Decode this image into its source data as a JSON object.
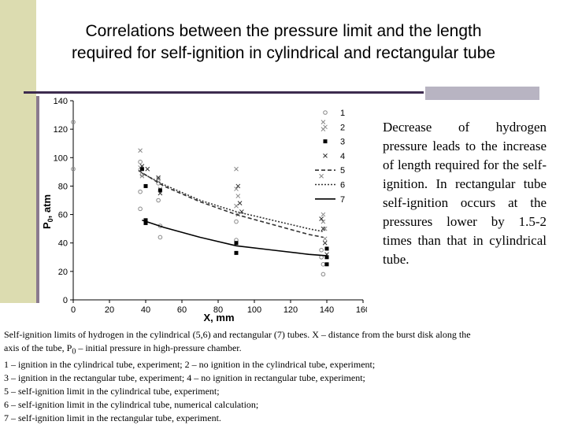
{
  "slide": {
    "title_line1": "Correlations between the pressure limit and the length",
    "title_line2": "required for self-ignition in cylindrical and rectangular tube",
    "side_text": "Decrease of hydrogen pressure leads to the increase of length required for the self-ignition. In rectangular tube self-ignition occurs at the pressures lower by 1.5-2 times than that in cylindrical tube.",
    "caption": {
      "line1_a": "Self-ignition limits of hydrogen in the cylindrical (5,6) and rectangular (7) tubes. X – distance from the burst disk along the",
      "line1_b_pre": "axis of the tube, P",
      "line1_b_sub": "0",
      "line1_b_post": " – initial pressure in high-pressure chamber.",
      "line2": "1 – ignition in the cylindrical tube, experiment; 2 – no ignition in the cylindrical tube, experiment;",
      "line3": "3 – ignition in the rectangular tube, experiment; 4 – no ignition in rectangular tube, experiment;",
      "line4": "5 – self-ignition limit in the cylindrical tube, experiment;",
      "line5": "6 – self-ignition limit in the cylindrical tube, numerical calculation;",
      "line6": "7 – self-ignition limit in the rectangular tube, experiment."
    }
  },
  "chart_data": {
    "type": "scatter",
    "xlabel": "X, mm",
    "ylabel_main": "P",
    "ylabel_sub": "0",
    "ylabel_tail": ", atm",
    "xlim": [
      0,
      160
    ],
    "ylim": [
      0,
      140
    ],
    "x_ticks": [
      "0",
      "20",
      "40",
      "60",
      "80",
      "100",
      "120",
      "140",
      "160"
    ],
    "y_ticks": [
      "0",
      "20",
      "40",
      "60",
      "80",
      "100",
      "120",
      "140"
    ],
    "grid": false,
    "legend_position": "right",
    "series": [
      {
        "name": "1",
        "marker": "circle",
        "color": "#888888",
        "points": [
          [
            0,
            125
          ],
          [
            0,
            92
          ],
          [
            37,
            97
          ],
          [
            37,
            76
          ],
          [
            37,
            64
          ],
          [
            38,
            88
          ],
          [
            47,
            82
          ],
          [
            47,
            70
          ],
          [
            48,
            52
          ],
          [
            48,
            44
          ],
          [
            90,
            55
          ],
          [
            90,
            42
          ],
          [
            137,
            35
          ],
          [
            137,
            30
          ],
          [
            138,
            25
          ],
          [
            138,
            18
          ]
        ]
      },
      {
        "name": "2",
        "marker": "x",
        "color": "#888888",
        "points": [
          [
            37,
            105
          ],
          [
            37,
            93
          ],
          [
            38,
            87
          ],
          [
            47,
            85
          ],
          [
            48,
            78
          ],
          [
            90,
            92
          ],
          [
            90,
            78
          ],
          [
            91,
            73
          ],
          [
            90,
            66
          ],
          [
            91,
            60
          ],
          [
            138,
            125
          ],
          [
            138,
            120
          ],
          [
            137,
            87
          ],
          [
            138,
            60
          ],
          [
            138,
            55
          ],
          [
            139,
            50
          ],
          [
            139,
            43
          ]
        ]
      },
      {
        "name": "3",
        "marker": "square",
        "color": "#000000",
        "points": [
          [
            38,
            92
          ],
          [
            40,
            80
          ],
          [
            48,
            77
          ],
          [
            40,
            56
          ],
          [
            40,
            54
          ],
          [
            90,
            40
          ],
          [
            90,
            33
          ],
          [
            140,
            36
          ],
          [
            140,
            30
          ],
          [
            140,
            25
          ]
        ]
      },
      {
        "name": "4",
        "marker": "x",
        "color": "#333333",
        "points": [
          [
            38,
            94
          ],
          [
            41,
            92
          ],
          [
            47,
            86
          ],
          [
            48,
            75
          ],
          [
            91,
            80
          ],
          [
            92,
            68
          ],
          [
            93,
            62
          ],
          [
            137,
            57
          ],
          [
            138,
            50
          ],
          [
            139,
            40
          ],
          [
            140,
            32
          ]
        ]
      },
      {
        "name": "5",
        "type": "line",
        "dash": "5,3",
        "color": "#333333",
        "x": [
          36,
          50,
          70,
          90,
          110,
          130,
          138
        ],
        "y": [
          91,
          80,
          69,
          60,
          53,
          46,
          44
        ]
      },
      {
        "name": "6",
        "type": "line",
        "dash": "2,2",
        "color": "#333333",
        "x": [
          38,
          50,
          70,
          90,
          110,
          130,
          138
        ],
        "y": [
          89,
          81,
          70,
          62,
          56,
          50,
          48
        ]
      },
      {
        "name": "7",
        "type": "line",
        "dash": "",
        "color": "#000000",
        "x": [
          38,
          50,
          70,
          90,
          110,
          130,
          140
        ],
        "y": [
          56,
          51,
          44,
          38,
          35,
          32,
          31
        ]
      }
    ]
  }
}
